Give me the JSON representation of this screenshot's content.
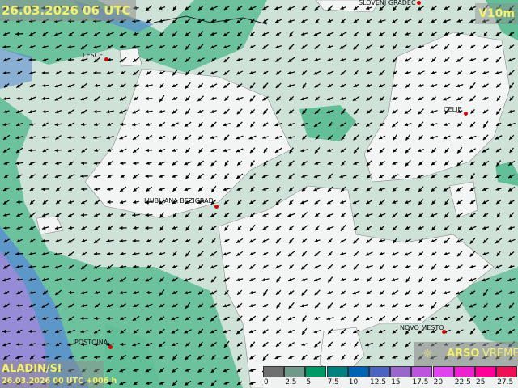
{
  "header": {
    "valid_time": "26.03.2026 06 UTC",
    "parameter": "V10m"
  },
  "model": {
    "name": "ALADIN/SI",
    "run": "26.03.2026 00 UTC +006 h"
  },
  "logo": {
    "bold": "ARSO",
    "light": "VREME",
    "icon": "sun-icon"
  },
  "cities": [
    {
      "name": "SLOVENJ GRADEC"
    },
    {
      "name": "LESCE"
    },
    {
      "name": "CELJE"
    },
    {
      "name": "LJUBLJANA BEZIGRAD"
    },
    {
      "name": "NOVO MESTO"
    },
    {
      "name": "POSTOJNA"
    }
  ],
  "legend": {
    "unit_ticks": [
      "0",
      "2.5",
      "5",
      "7.5",
      "10",
      "12.5",
      "15",
      "17.5",
      "20",
      "22.5",
      "25",
      "27.5"
    ],
    "colors": [
      "#6f6f6f",
      "#6f9a8a",
      "#009966",
      "#008080",
      "#0062b3",
      "#4a64c0",
      "#9966cc",
      "#bb55dd",
      "#e044ee",
      "#ee22cc",
      "#ff0099",
      "#ee1155"
    ]
  },
  "wind_direction": "north-easterly (arrows pointing south-west)",
  "colors": {
    "calm": "#f3f5f4",
    "light": "#cfe2d8",
    "moderate": "#62bf98",
    "teal": "#4aa5a5",
    "blue": "#5a8ed0",
    "purple": "#a08ad8"
  }
}
